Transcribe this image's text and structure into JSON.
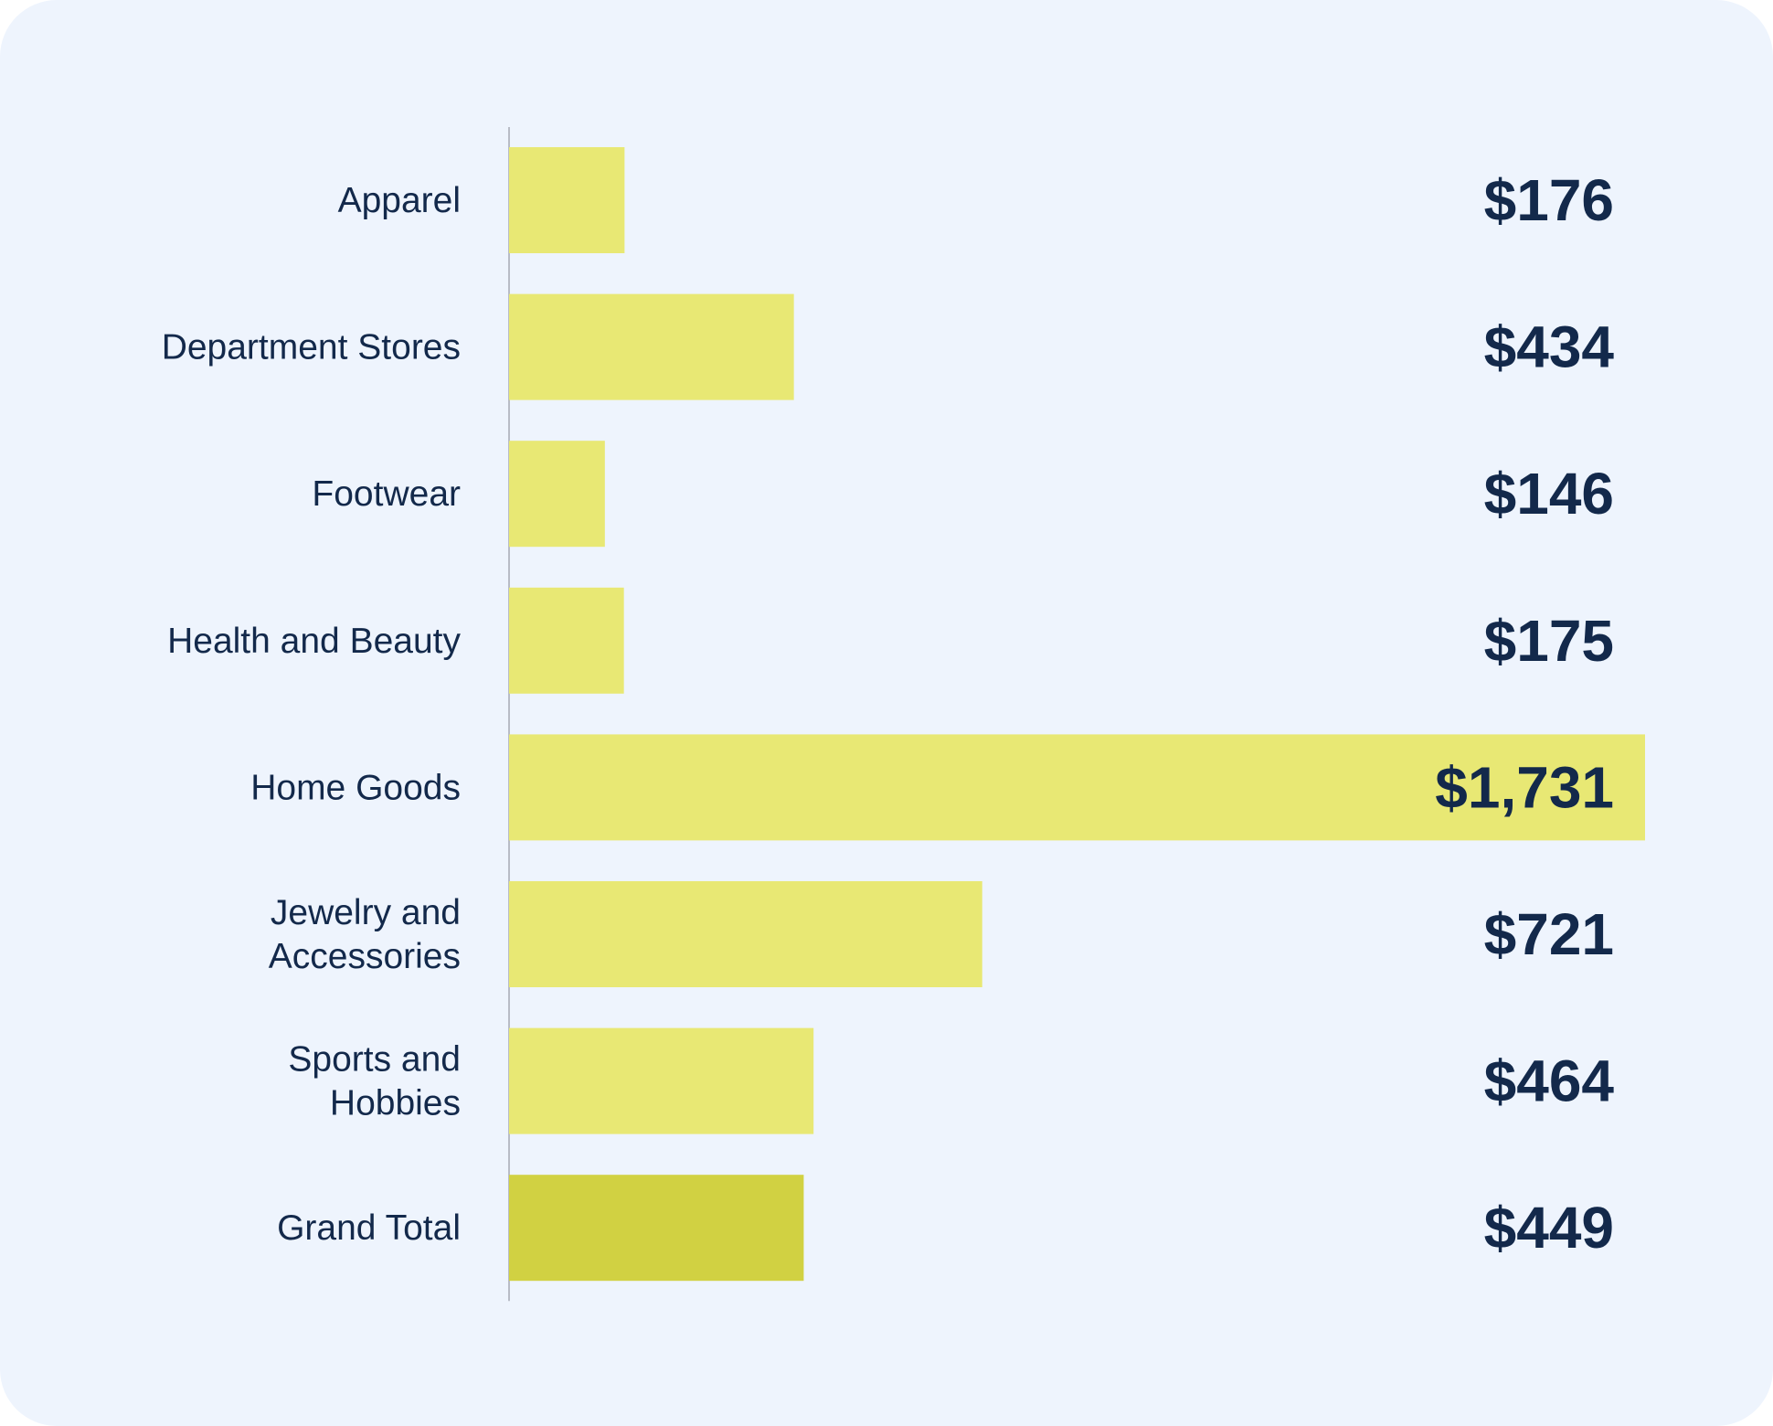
{
  "chart_data": {
    "type": "bar",
    "orientation": "horizontal",
    "categories": [
      "Apparel",
      "Department Stores",
      "Footwear",
      "Health and Beauty",
      "Home Goods",
      "Jewelry and Accessories",
      "Sports and Hobbies",
      "Grand Total"
    ],
    "category_lines": [
      [
        "Apparel"
      ],
      [
        "Department Stores"
      ],
      [
        "Footwear"
      ],
      [
        "Health and Beauty"
      ],
      [
        "Home Goods"
      ],
      [
        "Jewelry and",
        "Accessories"
      ],
      [
        "Sports and",
        "Hobbies"
      ],
      [
        "Grand Total"
      ]
    ],
    "values": [
      176,
      434,
      146,
      175,
      1731,
      721,
      464,
      449
    ],
    "value_labels": [
      "$176",
      "$434",
      "$146",
      "$175",
      "$1,731",
      "$721",
      "$464",
      "$449"
    ],
    "title": "",
    "xlabel": "",
    "ylabel": "",
    "xlim": [
      0,
      1731
    ],
    "grid": false,
    "legend": "none",
    "colors": {
      "bar": "#e8e874",
      "total_bar": "#d1d142",
      "axis": "#b8bcc6",
      "text": "#13294b",
      "background": "#eef4fd"
    }
  }
}
